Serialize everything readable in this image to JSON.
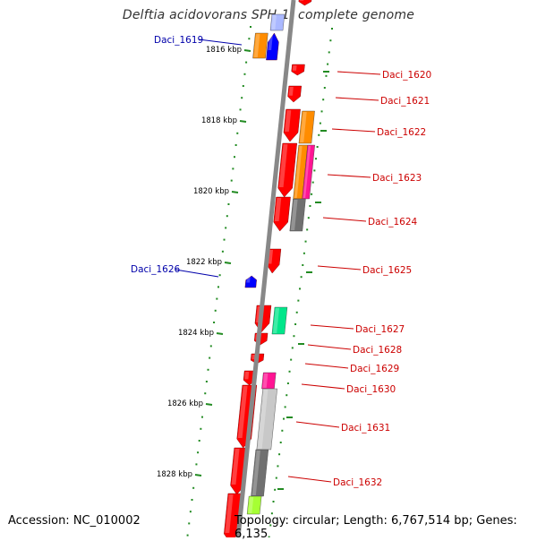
{
  "title": "Delftia acidovorans SPH-1, complete genome",
  "accession_text": "Accession: NC_010002",
  "summary_text": "Topology: circular; Length: 6,767,514 bp; Genes: 6,135",
  "colors": {
    "backbone": "#888888",
    "tick": "#228b22",
    "plus_label": "#cc0000",
    "minus_label": "#0000aa",
    "gene_red": "#ff0000",
    "gene_blue": "#0000ff",
    "gene_orange": "#ff8c00",
    "gene_magenta": "#ff1493",
    "gene_gray": "#707070",
    "gene_light_gray": "#c8c8c8",
    "gene_teal": "#00e68a",
    "gene_lime": "#a6ff33"
  },
  "kbp_labels": [
    "1816 kbp",
    "1818 kbp",
    "1820 kbp",
    "1822 kbp",
    "1824 kbp",
    "1826 kbp",
    "1828 kbp"
  ],
  "gene_labels": [
    {
      "name": "Daci_1619",
      "strand": "minus"
    },
    {
      "name": "Daci_1620",
      "strand": "plus"
    },
    {
      "name": "Daci_1621",
      "strand": "plus"
    },
    {
      "name": "Daci_1622",
      "strand": "plus"
    },
    {
      "name": "Daci_1623",
      "strand": "plus"
    },
    {
      "name": "Daci_1624",
      "strand": "plus"
    },
    {
      "name": "Daci_1625",
      "strand": "plus"
    },
    {
      "name": "Daci_1626",
      "strand": "minus"
    },
    {
      "name": "Daci_1627",
      "strand": "plus"
    },
    {
      "name": "Daci_1628",
      "strand": "plus"
    },
    {
      "name": "Daci_1629",
      "strand": "plus"
    },
    {
      "name": "Daci_1630",
      "strand": "plus"
    },
    {
      "name": "Daci_1631",
      "strand": "plus"
    },
    {
      "name": "Daci_1632",
      "strand": "plus"
    }
  ]
}
